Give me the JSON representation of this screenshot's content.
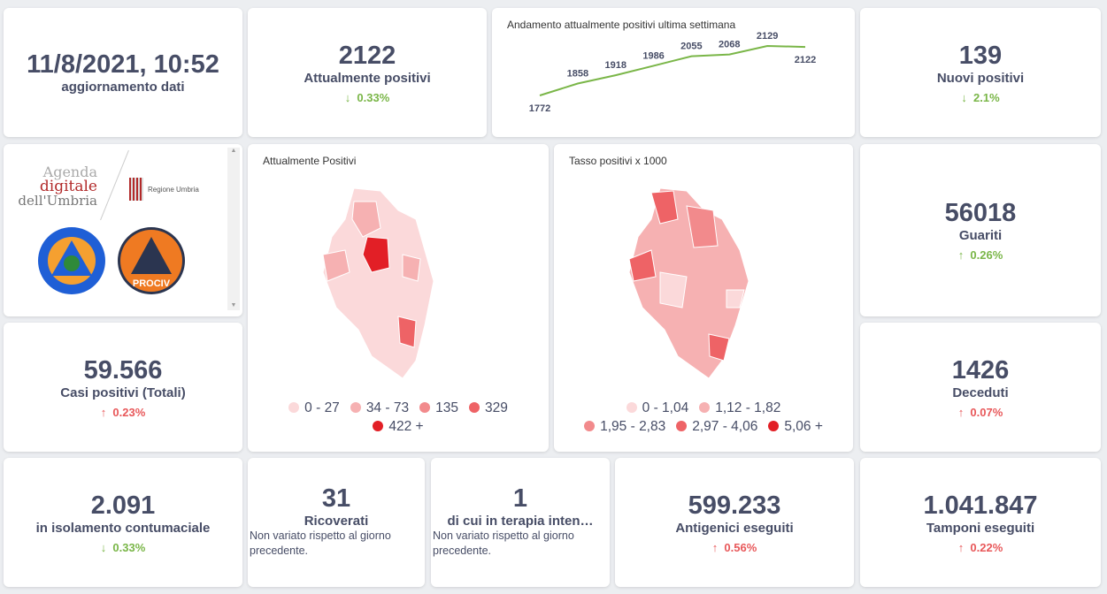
{
  "update": {
    "value": "11/8/2021, 10:52",
    "label": "aggiornamento dati"
  },
  "attualmente": {
    "value": "2122",
    "label": "Attualmente positivi",
    "change": "0.33%",
    "dir": "down"
  },
  "trend": {
    "title": "Andamento attualmente positivi ultima settimana"
  },
  "nuovi": {
    "value": "139",
    "label": "Nuovi positivi",
    "change": "2.1%",
    "dir": "down"
  },
  "logos": {
    "agenda1": "Agenda",
    "agenda2": "digitale",
    "agenda3": "dell'Umbria",
    "regione": "Regione Umbria",
    "protezione": "Protezione Civile",
    "anci": "ANCI UMBRIA PROCIV"
  },
  "map1": {
    "title": "Attualmente Positivi",
    "legend": [
      {
        "label": "0 - 27",
        "color": "#fbd9da"
      },
      {
        "label": "34 - 73",
        "color": "#f6b1b2"
      },
      {
        "label": "135",
        "color": "#f28a8c"
      },
      {
        "label": "329",
        "color": "#ee6366"
      },
      {
        "label": "422 +",
        "color": "#e21f26"
      }
    ]
  },
  "map2": {
    "title": "Tasso positivi x 1000",
    "legend": [
      {
        "label": "0 - 1,04",
        "color": "#fbd9da"
      },
      {
        "label": "1,12 - 1,82",
        "color": "#f6b1b2"
      },
      {
        "label": "1,95 - 2,83",
        "color": "#f28a8c"
      },
      {
        "label": "2,97 - 4,06",
        "color": "#ee6366"
      },
      {
        "label": "5,06 +",
        "color": "#e21f26"
      }
    ]
  },
  "guariti": {
    "value": "56018",
    "label": "Guariti",
    "change": "0.26%"
  },
  "casi": {
    "value": "59.566",
    "label": "Casi positivi (Totali)",
    "change": "0.23%"
  },
  "deceduti": {
    "value": "1426",
    "label": "Deceduti",
    "change": "0.07%"
  },
  "isolamento": {
    "value": "2.091",
    "label": "in isolamento contumaciale",
    "change": "0.33%"
  },
  "ricoverati": {
    "value": "31",
    "label": "Ricoverati",
    "note": "Non variato rispetto al giorno precedente."
  },
  "terapia": {
    "value": "1",
    "label": "di cui in terapia inten…",
    "note": "Non variato rispetto al giorno precedente."
  },
  "antigenici": {
    "value": "599.233",
    "label": "Antigenici eseguiti",
    "change": "0.56%"
  },
  "tamponi": {
    "value": "1.041.847",
    "label": "Tamponi eseguiti",
    "change": "0.22%"
  },
  "arrows": {
    "up": "↑",
    "down": "↓"
  },
  "chart_data": {
    "type": "line",
    "title": "Andamento attualmente positivi ultima settimana",
    "values": [
      1772,
      1858,
      1918,
      1986,
      2055,
      2068,
      2129,
      2122
    ],
    "color": "#7ab648"
  }
}
